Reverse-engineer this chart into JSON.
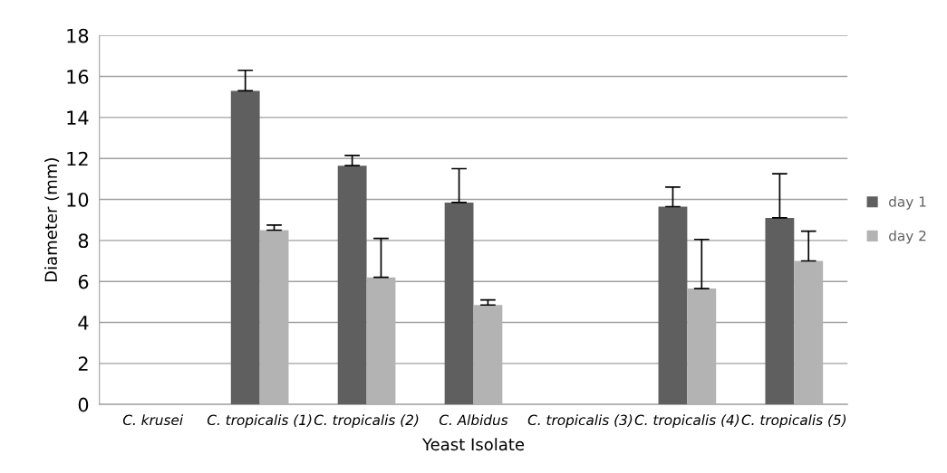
{
  "chart_data": {
    "type": "bar",
    "xlabel": "Yeast Isolate",
    "ylabel": "Diameter (mm)",
    "categories": [
      "C. krusei",
      "C. tropicalis (1)",
      "C. tropicalis (2)",
      "C. Albidus",
      "C. tropicalis (3)",
      "C. tropicalis (4)",
      "C. tropicalis (5)"
    ],
    "series": [
      {
        "name": "day 1",
        "color": "#5f5f5f",
        "values": [
          0,
          15.3,
          11.65,
          9.85,
          0,
          9.65,
          9.1
        ],
        "errors": [
          null,
          1.0,
          0.5,
          1.65,
          null,
          0.95,
          2.15
        ]
      },
      {
        "name": "day 2",
        "color": "#b3b3b3",
        "values": [
          0,
          8.5,
          6.2,
          4.85,
          0,
          5.65,
          7.0
        ],
        "errors": [
          null,
          0.25,
          1.9,
          0.25,
          null,
          2.4,
          1.45
        ]
      }
    ],
    "ylim": [
      0,
      18
    ],
    "yticks": [
      0,
      2,
      4,
      6,
      8,
      10,
      12,
      14,
      16,
      18
    ],
    "grid": "y",
    "legend": "right"
  }
}
